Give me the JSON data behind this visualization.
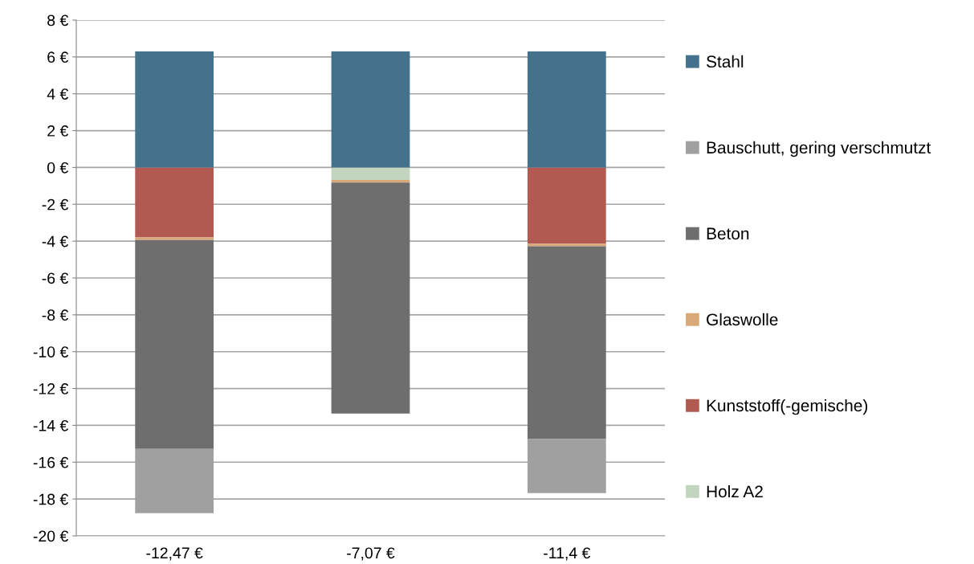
{
  "chart_data": {
    "type": "bar",
    "stacked": true,
    "categories": [
      "-12,47 €",
      "-7,07 €",
      "-11,4 €"
    ],
    "series": [
      {
        "name": "Holz A2",
        "color": "#c2d5bf",
        "values": [
          0,
          -0.68,
          0
        ]
      },
      {
        "name": "Kunststoff(-gemische)",
        "color": "#b05a52",
        "values": [
          -3.8,
          0,
          -4.15
        ]
      },
      {
        "name": "Glaswolle",
        "color": "#d9a878",
        "values": [
          -0.14,
          -0.14,
          -0.13
        ]
      },
      {
        "name": "Beton",
        "color": "#6e6e6e",
        "values": [
          -11.34,
          -12.54,
          -10.46
        ]
      },
      {
        "name": "Bauschutt, gering verschmutzt",
        "color": "#a0a0a0",
        "values": [
          -3.49,
          0,
          -2.94
        ]
      },
      {
        "name": "Stahl",
        "color": "#44728c",
        "values": [
          6.3,
          6.3,
          6.3
        ]
      }
    ],
    "ylim": [
      -20,
      8
    ],
    "yticks": [
      {
        "value": 8,
        "label": "8 €"
      },
      {
        "value": 6,
        "label": "6 €"
      },
      {
        "value": 4,
        "label": "4 €"
      },
      {
        "value": 2,
        "label": "2 €"
      },
      {
        "value": 0,
        "label": "0 €"
      },
      {
        "value": -2,
        "label": "-2 €"
      },
      {
        "value": -4,
        "label": "-4 €"
      },
      {
        "value": -6,
        "label": "-6 €"
      },
      {
        "value": -8,
        "label": "-8 €"
      },
      {
        "value": -10,
        "label": "-10 €"
      },
      {
        "value": -12,
        "label": "-12 €"
      },
      {
        "value": -14,
        "label": "-14 €"
      },
      {
        "value": -16,
        "label": "-16 €"
      },
      {
        "value": -18,
        "label": "-18 €"
      },
      {
        "value": -20,
        "label": "-20 €"
      }
    ],
    "grid": "y",
    "legend": "right"
  }
}
